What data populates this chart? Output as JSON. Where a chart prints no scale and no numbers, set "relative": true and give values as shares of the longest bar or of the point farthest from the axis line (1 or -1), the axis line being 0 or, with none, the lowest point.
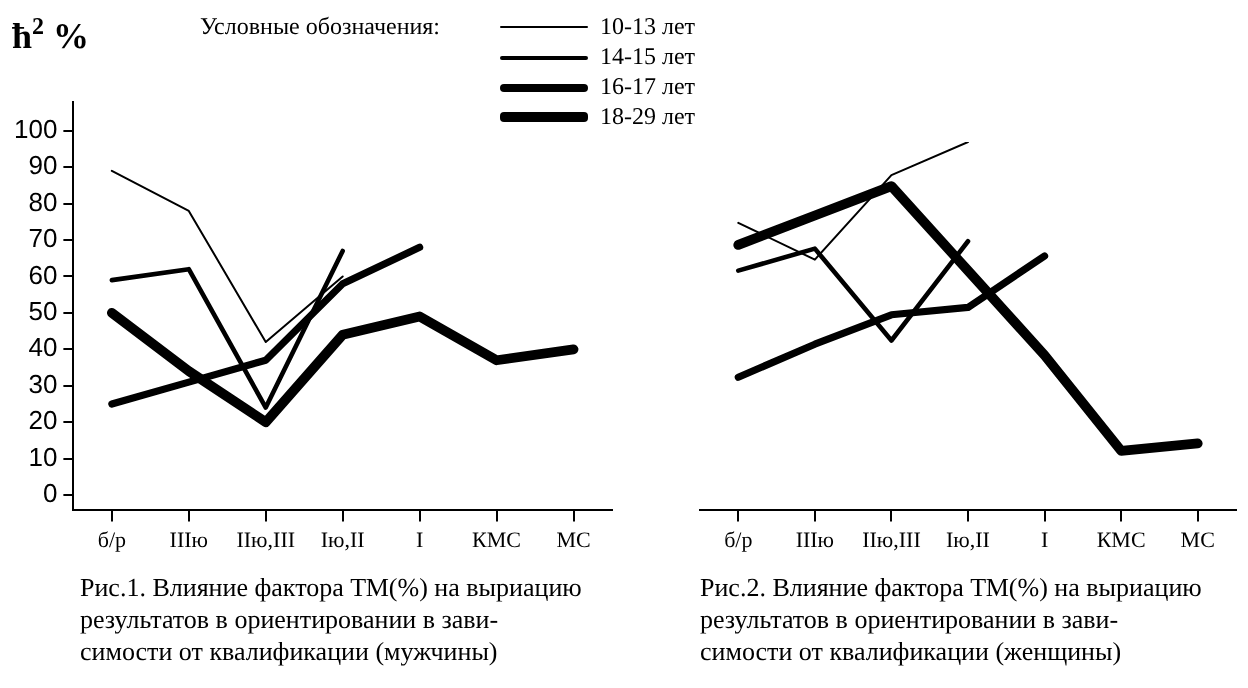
{
  "chart_data": [
    {
      "type": "line",
      "ylabel": "ħ$^{2}$ %",
      "legend_title": "Условные обозначения:",
      "legend": "top",
      "categories": [
        "б/р",
        "IIIю",
        "IIю,III",
        "Iю,II",
        "I",
        "КМС",
        "МС"
      ],
      "ylim": [
        -4,
        108
      ],
      "yticks": [
        0,
        10,
        20,
        30,
        40,
        50,
        60,
        70,
        80,
        90,
        100
      ],
      "grid": false,
      "series": [
        {
          "name": "10-13 лет",
          "color": "#000000",
          "values": [
            89,
            78,
            42,
            60,
            null,
            null,
            null
          ]
        },
        {
          "name": "14-15 лет",
          "color": "#000000",
          "values": [
            59,
            62,
            24,
            67,
            null,
            null,
            null
          ]
        },
        {
          "name": "16-17 лет",
          "color": "#000000",
          "values": [
            25,
            31,
            37,
            58,
            68,
            null,
            null
          ]
        },
        {
          "name": "18-29 лет",
          "color": "#000000",
          "values": [
            50,
            34,
            20,
            44,
            49,
            37,
            40
          ]
        }
      ],
      "annotations": [
        "Рис.1. Влияние фактора ТМ(%) на выриацию\nрезультатов в ориентировании в зави-\nсимости от квалификации (мужчины)"
      ]
    },
    {
      "type": "line",
      "relative": true,
      "tick_labels": "x",
      "categories": [
        "б/р",
        "IIIю",
        "IIю,III",
        "Iю,II",
        "I",
        "КМС",
        "МС"
      ],
      "grid": false,
      "series": [
        {
          "color": "#000000",
          "values": [
            0.78,
            0.68,
            0.91,
            1.0,
            null,
            null,
            null
          ]
        },
        {
          "color": "#000000",
          "values": [
            0.65,
            0.71,
            0.46,
            0.73,
            null,
            null,
            null
          ]
        },
        {
          "color": "#000000",
          "values": [
            0.36,
            0.45,
            0.53,
            0.55,
            0.69,
            null,
            null
          ]
        },
        {
          "color": "#000000",
          "values": [
            0.72,
            0.8,
            0.88,
            0.65,
            0.42,
            0.16,
            0.18
          ]
        }
      ],
      "annotations": [
        "Рис.2. Влияние фактора ТМ(%) на выриацию\nрезультатов в ориентировании в зави-\nсимости от квалификации (женщины)"
      ]
    }
  ]
}
